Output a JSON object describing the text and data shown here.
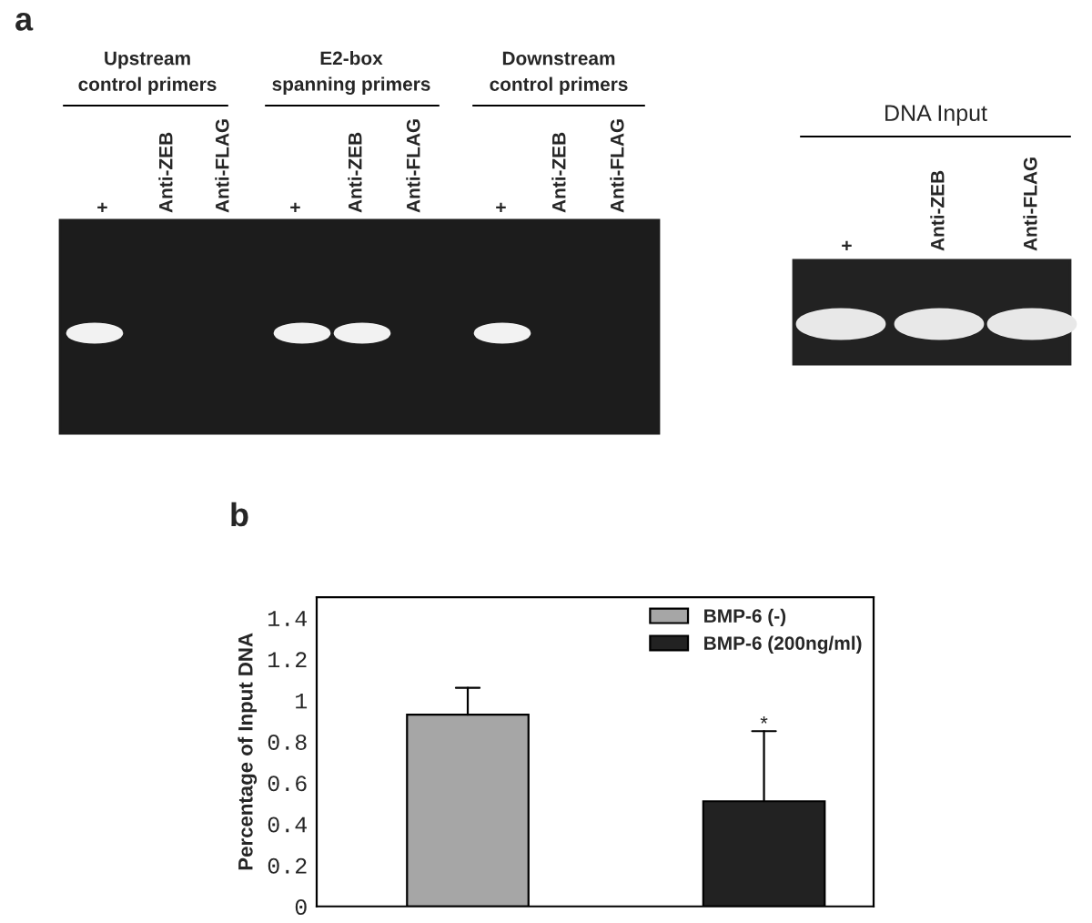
{
  "chart_data": [
    {
      "type": "other",
      "title": "a",
      "annotations": [
        "Upstream\ncontrol primers",
        "E2-box\nspanning primers",
        "Downstream\ncontrol primers",
        "+",
        "Anti-ZEB",
        "Anti-FLAG",
        "+",
        "Anti-ZEB",
        "Anti-FLAG",
        "+",
        "Anti-ZEB",
        "Anti-FLAG",
        "DNA Input",
        "+",
        "Anti-ZEB",
        "Anti-FLAG"
      ]
    },
    {
      "type": "bar",
      "title": "b",
      "ylabel": "Percentage of Input DNA",
      "categories": [
        null,
        null
      ],
      "series": [
        {
          "name": "BMP-6 (-)",
          "color": "#a6a6a6",
          "values": [
            0.93,
            null
          ],
          "errors": [
            [
              0.93,
              1.06
            ],
            null
          ]
        },
        {
          "name": "BMP-6 (200ng/ml)",
          "color": "#222222",
          "values": [
            null,
            0.51
          ],
          "errors": [
            null,
            [
              0.51,
              0.85
            ]
          ]
        }
      ],
      "ylim": [
        0,
        1.5
      ],
      "yticks": [
        0,
        0.2,
        0.4,
        0.6,
        0.8,
        1,
        1.2,
        1.4
      ],
      "annotations": [
        {
          "text": "*",
          "y": 0.88
        }
      ],
      "legend": "top right",
      "grid": false
    }
  ]
}
